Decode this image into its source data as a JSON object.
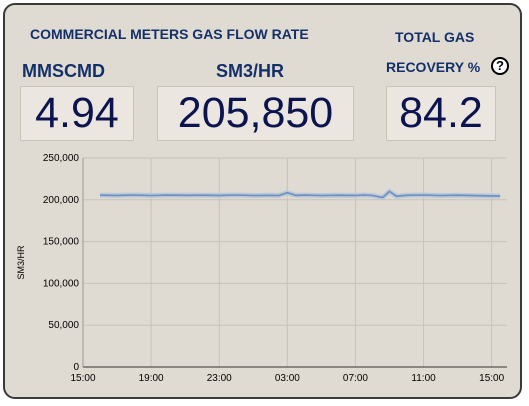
{
  "header": {
    "title": "COMMERCIAL METERS GAS FLOW RATE",
    "total_gas_label": "TOTAL GAS",
    "recovery_label": "RECOVERY %",
    "help_icon": "question-circle-icon",
    "help_glyph": "?"
  },
  "metrics": [
    {
      "unit": "MMSCMD",
      "value": "4.94"
    },
    {
      "unit": "SM3/HR",
      "value": "205,850"
    },
    {
      "unit": "RECOVERY %",
      "value": "84.2"
    }
  ],
  "colors": {
    "background": "#e0dbd2",
    "title_text": "#14306a",
    "value_text": "#0c1450",
    "series_line": "#6d8fba"
  },
  "chart_data": {
    "type": "line",
    "ylabel": "SM3/HR",
    "xlabel": "",
    "ylim": [
      0,
      250000
    ],
    "yticks": [
      0,
      50000,
      100000,
      150000,
      200000,
      250000
    ],
    "ytick_labels": [
      "0",
      "50,000",
      "100,000",
      "150,000",
      "200,000",
      "250,000"
    ],
    "xlim": [
      15.0,
      39.9
    ],
    "xticks": [
      15,
      19,
      23,
      27,
      31,
      35,
      39
    ],
    "xtick_labels": [
      "15:00",
      "19:00",
      "23:00",
      "03:00",
      "07:00",
      "11:00",
      "15:00"
    ],
    "grid": true,
    "x": [
      16.0,
      17.0,
      18.0,
      19.0,
      20.0,
      21.0,
      22.0,
      23.0,
      24.0,
      25.0,
      26.0,
      26.5,
      27.0,
      27.5,
      28.0,
      29.0,
      30.0,
      31.0,
      31.5,
      32.0,
      32.6,
      33.0,
      33.4,
      34.0,
      35.0,
      36.0,
      37.0,
      38.0,
      39.0,
      39.5
    ],
    "series": [
      {
        "values": [
          205500,
          205300,
          205700,
          205200,
          205600,
          205400,
          205500,
          205300,
          205700,
          205200,
          205400,
          205100,
          208500,
          205300,
          205600,
          205200,
          205500,
          205300,
          205700,
          205100,
          202800,
          210000,
          204300,
          205400,
          205700,
          205100,
          205500,
          205000,
          204700,
          204400
        ]
      }
    ]
  }
}
